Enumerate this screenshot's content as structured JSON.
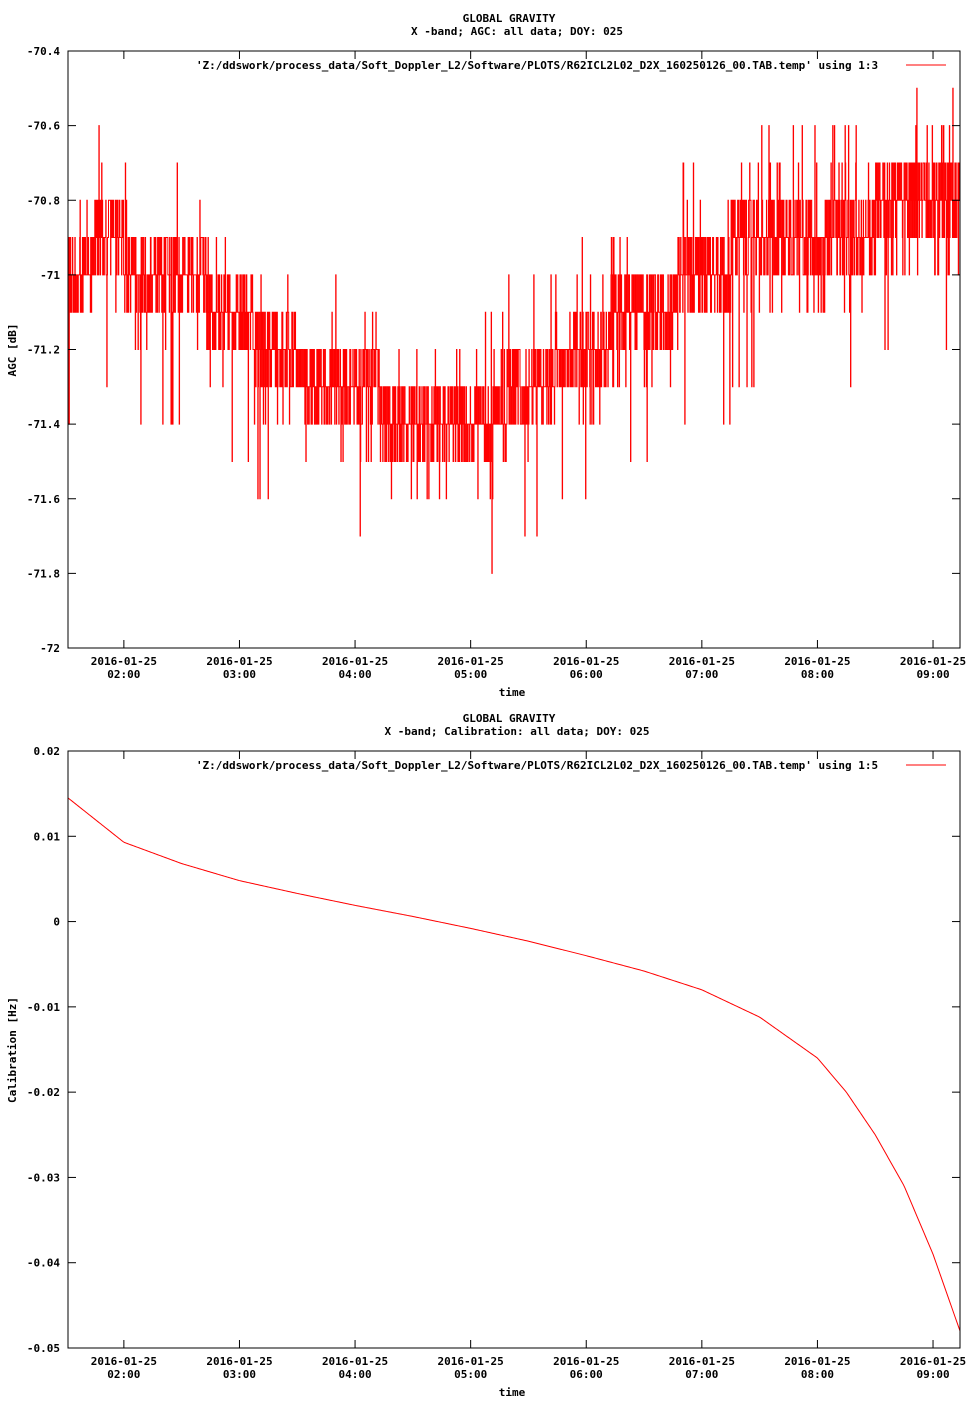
{
  "colors": {
    "series": "#ff0000",
    "axis": "#000000",
    "background": "#ffffff"
  },
  "chart_data": [
    {
      "type": "line",
      "title": "GLOBAL GRAVITY",
      "subtitle": "X -band; AGC: all data; DOY: 025",
      "xlabel": "time",
      "ylabel": "AGC [dB]",
      "ylim": [
        -72,
        -70.4
      ],
      "xlim": [
        "2016-01-25 01:31",
        "2016-01-25 09:14"
      ],
      "grid": false,
      "legend_position": "top-right",
      "yticks": [
        {
          "value": -70.4,
          "label": "-70.4"
        },
        {
          "value": -70.6,
          "label": "-70.6"
        },
        {
          "value": -70.8,
          "label": "-70.8"
        },
        {
          "value": -71,
          "label": "-71"
        },
        {
          "value": -71.2,
          "label": "-71.2"
        },
        {
          "value": -71.4,
          "label": "-71.4"
        },
        {
          "value": -71.6,
          "label": "-71.6"
        },
        {
          "value": -71.8,
          "label": "-71.8"
        },
        {
          "value": -72,
          "label": "-72"
        }
      ],
      "xticks": [
        {
          "value": "2016-01-25 02:00",
          "date": "2016-01-25",
          "time": "02:00"
        },
        {
          "value": "2016-01-25 03:00",
          "date": "2016-01-25",
          "time": "03:00"
        },
        {
          "value": "2016-01-25 04:00",
          "date": "2016-01-25",
          "time": "04:00"
        },
        {
          "value": "2016-01-25 05:00",
          "date": "2016-01-25",
          "time": "05:00"
        },
        {
          "value": "2016-01-25 06:00",
          "date": "2016-01-25",
          "time": "06:00"
        },
        {
          "value": "2016-01-25 07:00",
          "date": "2016-01-25",
          "time": "07:00"
        },
        {
          "value": "2016-01-25 08:00",
          "date": "2016-01-25",
          "time": "08:00"
        },
        {
          "value": "2016-01-25 09:00",
          "date": "2016-01-25",
          "time": "09:00"
        }
      ],
      "series": [
        {
          "name": "'Z:/ddswork/process_data/Soft_Doppler_L2/Software/PLOTS/R62ICL2L02_D2X_160250126_00.TAB.temp' using 1:3",
          "style": "noisy",
          "quantization": 0.1,
          "x": [
            "2016-01-25 01:31",
            "2016-01-25 01:45",
            "2016-01-25 02:00",
            "2016-01-25 02:30",
            "2016-01-25 03:00",
            "2016-01-25 03:30",
            "2016-01-25 04:00",
            "2016-01-25 04:30",
            "2016-01-25 05:00",
            "2016-01-25 05:30",
            "2016-01-25 06:00",
            "2016-01-25 06:30",
            "2016-01-25 07:00",
            "2016-01-25 07:30",
            "2016-01-25 08:00",
            "2016-01-25 08:30",
            "2016-01-25 09:00",
            "2016-01-25 09:14"
          ],
          "trend": [
            -71.0,
            -70.95,
            -70.95,
            -71.0,
            -71.12,
            -71.25,
            -71.3,
            -71.42,
            -71.4,
            -71.32,
            -71.17,
            -71.12,
            -71.0,
            -70.9,
            -70.88,
            -70.85,
            -70.85,
            -70.85
          ],
          "noise_range": [
            -71.9,
            -70.4
          ]
        }
      ]
    },
    {
      "type": "line",
      "title": "GLOBAL GRAVITY",
      "subtitle": "X -band; Calibration: all data; DOY: 025",
      "xlabel": "time",
      "ylabel": "Calibration [Hz]",
      "ylim": [
        -0.05,
        0.02
      ],
      "xlim": [
        "2016-01-25 01:31",
        "2016-01-25 09:14"
      ],
      "grid": false,
      "legend_position": "top-right",
      "yticks": [
        {
          "value": 0.02,
          "label": "0.02"
        },
        {
          "value": 0.01,
          "label": "0.01"
        },
        {
          "value": 0,
          "label": "0"
        },
        {
          "value": -0.01,
          "label": "-0.01"
        },
        {
          "value": -0.02,
          "label": "-0.02"
        },
        {
          "value": -0.03,
          "label": "-0.03"
        },
        {
          "value": -0.04,
          "label": "-0.04"
        },
        {
          "value": -0.05,
          "label": "-0.05"
        }
      ],
      "xticks": [
        {
          "value": "2016-01-25 02:00",
          "date": "2016-01-25",
          "time": "02:00"
        },
        {
          "value": "2016-01-25 03:00",
          "date": "2016-01-25",
          "time": "03:00"
        },
        {
          "value": "2016-01-25 04:00",
          "date": "2016-01-25",
          "time": "04:00"
        },
        {
          "value": "2016-01-25 05:00",
          "date": "2016-01-25",
          "time": "05:00"
        },
        {
          "value": "2016-01-25 06:00",
          "date": "2016-01-25",
          "time": "06:00"
        },
        {
          "value": "2016-01-25 07:00",
          "date": "2016-01-25",
          "time": "07:00"
        },
        {
          "value": "2016-01-25 08:00",
          "date": "2016-01-25",
          "time": "08:00"
        },
        {
          "value": "2016-01-25 09:00",
          "date": "2016-01-25",
          "time": "09:00"
        }
      ],
      "series": [
        {
          "name": "'Z:/ddswork/process_data/Soft_Doppler_L2/Software/PLOTS/R62ICL2L02_D2X_160250126_00.TAB.temp' using 1:5",
          "style": "smooth",
          "x": [
            "2016-01-25 01:31",
            "2016-01-25 02:00",
            "2016-01-25 02:30",
            "2016-01-25 03:00",
            "2016-01-25 03:30",
            "2016-01-25 04:00",
            "2016-01-25 04:30",
            "2016-01-25 05:00",
            "2016-01-25 05:30",
            "2016-01-25 06:00",
            "2016-01-25 06:30",
            "2016-01-25 07:00",
            "2016-01-25 07:30",
            "2016-01-25 08:00",
            "2016-01-25 08:15",
            "2016-01-25 08:30",
            "2016-01-25 08:45",
            "2016-01-25 09:00",
            "2016-01-25 09:14"
          ],
          "values": [
            0.0145,
            0.0093,
            0.0068,
            0.0048,
            0.0033,
            0.0019,
            0.0006,
            -0.0008,
            -0.0023,
            -0.004,
            -0.0058,
            -0.008,
            -0.0112,
            -0.016,
            -0.02,
            -0.025,
            -0.031,
            -0.039,
            -0.048
          ]
        }
      ]
    }
  ]
}
